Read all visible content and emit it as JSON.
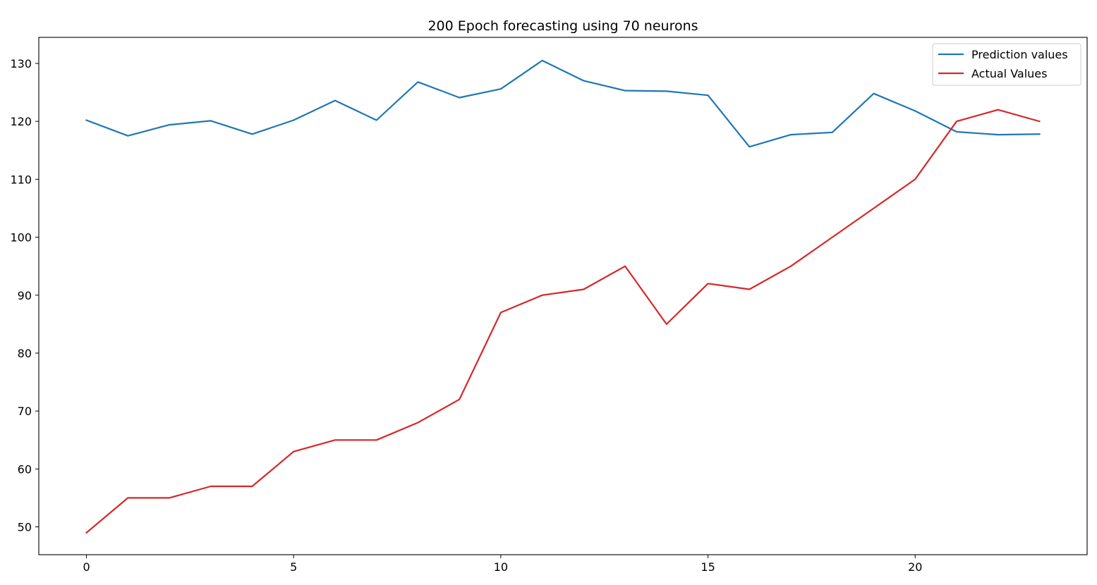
{
  "chart_data": {
    "type": "line",
    "title": "200 Epoch forecasting using 70 neurons",
    "xlabel": "",
    "ylabel": "",
    "x": [
      0,
      1,
      2,
      3,
      4,
      5,
      6,
      7,
      8,
      9,
      10,
      11,
      12,
      13,
      14,
      15,
      16,
      17,
      18,
      19,
      20,
      21,
      22,
      23
    ],
    "xlim": [
      -1.15,
      24.15
    ],
    "ylim": [
      45.2,
      134.5
    ],
    "xticks": [
      0,
      5,
      10,
      15,
      20
    ],
    "yticks": [
      50,
      60,
      70,
      80,
      90,
      100,
      110,
      120,
      130
    ],
    "grid": false,
    "legend_position": "top-right",
    "series": [
      {
        "name": "Prediction values",
        "color": "#1f77b4",
        "values": [
          120.2,
          117.5,
          119.4,
          120.1,
          117.8,
          120.2,
          123.6,
          120.2,
          126.8,
          124.1,
          125.6,
          130.5,
          127.0,
          125.3,
          125.2,
          124.5,
          115.6,
          117.7,
          118.1,
          124.8,
          121.8,
          118.2,
          117.7,
          117.8
        ]
      },
      {
        "name": "Actual Values",
        "color": "#d62728",
        "values": [
          49,
          55,
          55,
          57,
          57,
          63,
          65,
          65,
          68,
          72,
          87,
          90,
          91,
          95,
          85,
          92,
          91,
          95,
          100,
          105,
          110,
          120,
          122,
          120
        ]
      }
    ]
  }
}
